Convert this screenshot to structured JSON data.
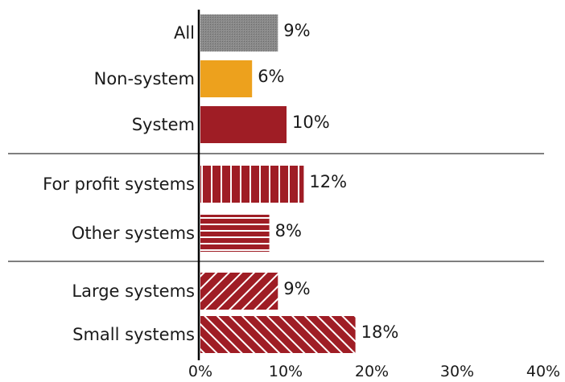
{
  "chart_data": {
    "type": "bar",
    "orientation": "horizontal",
    "categories": [
      "All",
      "Non-system",
      "System",
      "For profit systems",
      "Other systems",
      "Large systems",
      "Small systems"
    ],
    "values": [
      9,
      6,
      10,
      12,
      8,
      9,
      18
    ],
    "value_labels": [
      "9%",
      "6%",
      "10%",
      "12%",
      "8%",
      "9%",
      "18%"
    ],
    "fills": [
      "gray-stipple",
      "solid-orange",
      "solid-red",
      "vertical-stripes",
      "horizontal-stripes",
      "forward-diagonal",
      "backward-diagonal"
    ],
    "groups": [
      [
        "All",
        "Non-system",
        "System"
      ],
      [
        "For profit systems",
        "Other systems"
      ],
      [
        "Large systems",
        "Small systems"
      ]
    ],
    "x_ticks": [
      "0%",
      "10%",
      "20%",
      "30%",
      "40%"
    ],
    "xlim": [
      0,
      40
    ],
    "title": "",
    "xlabel": "",
    "ylabel": "",
    "grid": false,
    "legend": "none"
  },
  "colors": {
    "gray": "#7f7f7f",
    "orange": "#eda11d",
    "red": "#9f1d25",
    "axis": "#000000",
    "separator": "#333333"
  }
}
